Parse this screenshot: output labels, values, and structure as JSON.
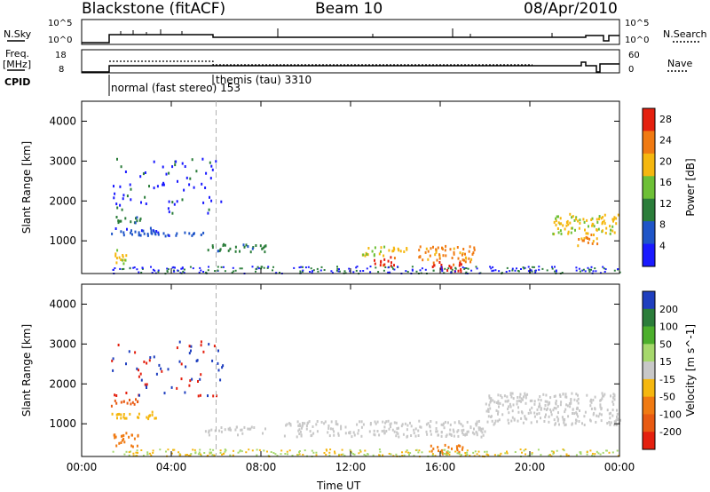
{
  "header": {
    "station": "Blackstone (fitACF)",
    "beam": "Beam 10",
    "date": "08/Apr/2010"
  },
  "panels_top": {
    "nsky_label": "N.Sky",
    "nsearch_label": "N.Search",
    "freq_label_1": "Freq.",
    "freq_label_2": "[MHz]",
    "nave_label": "Nave",
    "cpid_label": "CPID",
    "nsky_ticks": [
      "10^5",
      "10^0"
    ],
    "nsearch_ticks": [
      "10^5",
      "10^0"
    ],
    "freq_ticks": [
      "18",
      "8"
    ],
    "nave_ticks": [
      "60",
      "0"
    ],
    "cpid_segments": [
      {
        "label": "normal (fast stereo) 153",
        "start_hour": 1.3
      },
      {
        "label": "themis (tau) 3310",
        "start_hour": 6.0
      }
    ]
  },
  "chart_data": [
    {
      "type": "heatmap",
      "panel": "power",
      "xlabel": "",
      "ylabel": "Slant Range [km]",
      "x_ticks": [
        "00:00",
        "04:00",
        "08:00",
        "12:00",
        "16:00",
        "20:00",
        "00:00"
      ],
      "xlim_hours": [
        0,
        24
      ],
      "ylim": [
        180,
        4500
      ],
      "y_ticks": [
        1000,
        2000,
        3000,
        4000
      ],
      "colorbar": {
        "label": "Power [dB]",
        "ticks": [
          4,
          8,
          12,
          16,
          20,
          24,
          28
        ],
        "range": [
          0,
          30
        ],
        "colors": [
          "#1a1aff",
          "#1f55c8",
          "#2b7d3a",
          "#6dc036",
          "#f5b70f",
          "#f07a12",
          "#e4200f"
        ]
      },
      "echo_regions": [
        {
          "t0": 1.3,
          "t1": 2.6,
          "r0": 1450,
          "r1": 1650,
          "level": 12
        },
        {
          "t0": 1.3,
          "t1": 3.5,
          "r0": 1150,
          "r1": 1350,
          "level": 8
        },
        {
          "t0": 2.5,
          "t1": 6.0,
          "r0": 1150,
          "r1": 1250,
          "level": 6
        },
        {
          "t0": 1.3,
          "t1": 2.0,
          "r0": 450,
          "r1": 800,
          "level": 20
        },
        {
          "t0": 5.5,
          "t1": 8.2,
          "r0": 750,
          "r1": 950,
          "level": 10
        },
        {
          "t0": 12.5,
          "t1": 14.5,
          "r0": 650,
          "r1": 900,
          "level": 18
        },
        {
          "t0": 13.0,
          "t1": 14.0,
          "r0": 400,
          "r1": 650,
          "level": 26
        },
        {
          "t0": 15.0,
          "t1": 17.5,
          "r0": 500,
          "r1": 900,
          "level": 24
        },
        {
          "t0": 15.5,
          "t1": 17.0,
          "r0": 250,
          "r1": 500,
          "level": 26
        },
        {
          "t0": 21.0,
          "t1": 24.0,
          "r0": 1200,
          "r1": 1700,
          "level": 18
        },
        {
          "t0": 22.0,
          "t1": 23.0,
          "r0": 900,
          "r1": 1200,
          "level": 22
        }
      ]
    },
    {
      "type": "heatmap",
      "panel": "velocity",
      "xlabel": "Time UT",
      "ylabel": "Slant Range [km]",
      "x_ticks": [
        "00:00",
        "04:00",
        "08:00",
        "12:00",
        "16:00",
        "20:00",
        "00:00"
      ],
      "xlim_hours": [
        0,
        24
      ],
      "ylim": [
        180,
        4500
      ],
      "y_ticks": [
        1000,
        2000,
        3000,
        4000
      ],
      "colorbar": {
        "label": "Velocity [m s^-1]",
        "ticks": [
          200,
          100,
          50,
          15,
          -15,
          -50,
          -100,
          -200
        ],
        "colors": [
          "#1f3fbf",
          "#2b7d3a",
          "#4caf2c",
          "#a6d86c",
          "#c8c8c8",
          "#f5b70f",
          "#f07a12",
          "#e85a12",
          "#e4200f"
        ]
      },
      "echo_regions": [
        {
          "t0": 1.3,
          "t1": 2.6,
          "r0": 1450,
          "r1": 1650,
          "v": -200
        },
        {
          "t0": 1.3,
          "t1": 3.5,
          "r0": 1150,
          "r1": 1350,
          "v": -50
        },
        {
          "t0": 1.3,
          "t1": 2.5,
          "r0": 450,
          "r1": 800,
          "v": -100
        },
        {
          "t0": 5.5,
          "t1": 8.2,
          "r0": 750,
          "r1": 950,
          "v": -15
        },
        {
          "t0": 9.0,
          "t1": 18.0,
          "r0": 700,
          "r1": 1100,
          "v": 0
        },
        {
          "t0": 15.5,
          "t1": 17.0,
          "r0": 250,
          "r1": 500,
          "v": -100
        },
        {
          "t0": 18.0,
          "t1": 24.0,
          "r0": 1000,
          "r1": 1800,
          "v": 0
        }
      ]
    }
  ]
}
